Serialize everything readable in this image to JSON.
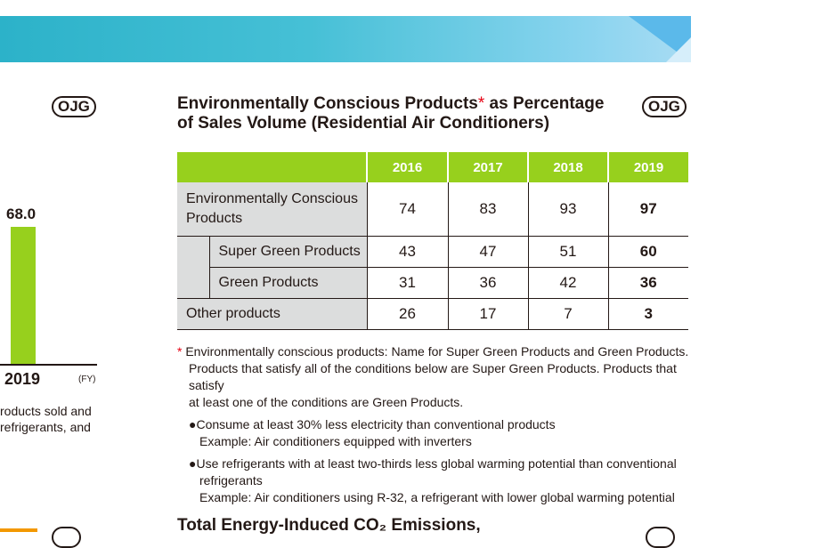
{
  "banner": {
    "colors": [
      "#2cb2c9",
      "#a9dcf3"
    ]
  },
  "left_panel": {
    "badge": "OJG",
    "bar_value": "68.0",
    "year": "2019",
    "fy": "(FY)",
    "caption_lines": [
      "roducts sold and",
      "refrigerants, and"
    ]
  },
  "main": {
    "title_part1": "Environmentally Conscious Products",
    "title_star": "*",
    "title_part2": " as Percentage",
    "title_line2": "of Sales Volume (Residential Air Conditioners)",
    "badge": "OJG",
    "table": {
      "years": [
        "2016",
        "2017",
        "2018",
        "2019"
      ],
      "rows": [
        {
          "label": "Environmentally Conscious Products",
          "values": [
            "74",
            "83",
            "93",
            "97"
          ]
        },
        {
          "label": "Super Green Products",
          "values": [
            "43",
            "47",
            "51",
            "60"
          ]
        },
        {
          "label": "Green Products",
          "values": [
            "31",
            "36",
            "42",
            "36"
          ]
        },
        {
          "label": "Other products",
          "values": [
            "26",
            "17",
            "7",
            "3"
          ]
        }
      ]
    },
    "notes": {
      "star": "*",
      "line1": "Environmentally conscious products: Name for Super Green Products and Green Products.",
      "line2": "Products that satisfy all of the conditions below are Super Green Products. Products that satisfy",
      "line3": "at least one of the conditions are Green Products.",
      "b1": "Consume at least 30% less electricity than conventional products",
      "b1ex": "Example: Air conditioners equipped with inverters",
      "b2a": "Use refrigerants with at least two-thirds less global warming potential than conventional",
      "b2b": "refrigerants",
      "b2ex": "Example: Air conditioners using R-32, a refrigerant with lower global warming potential"
    },
    "bottom_title": "Total Energy-Induced CO₂ Emissions,"
  },
  "colors": {
    "accent_green": "#97d01d",
    "label_gray": "#dcdddd",
    "star_red": "#e60012"
  }
}
